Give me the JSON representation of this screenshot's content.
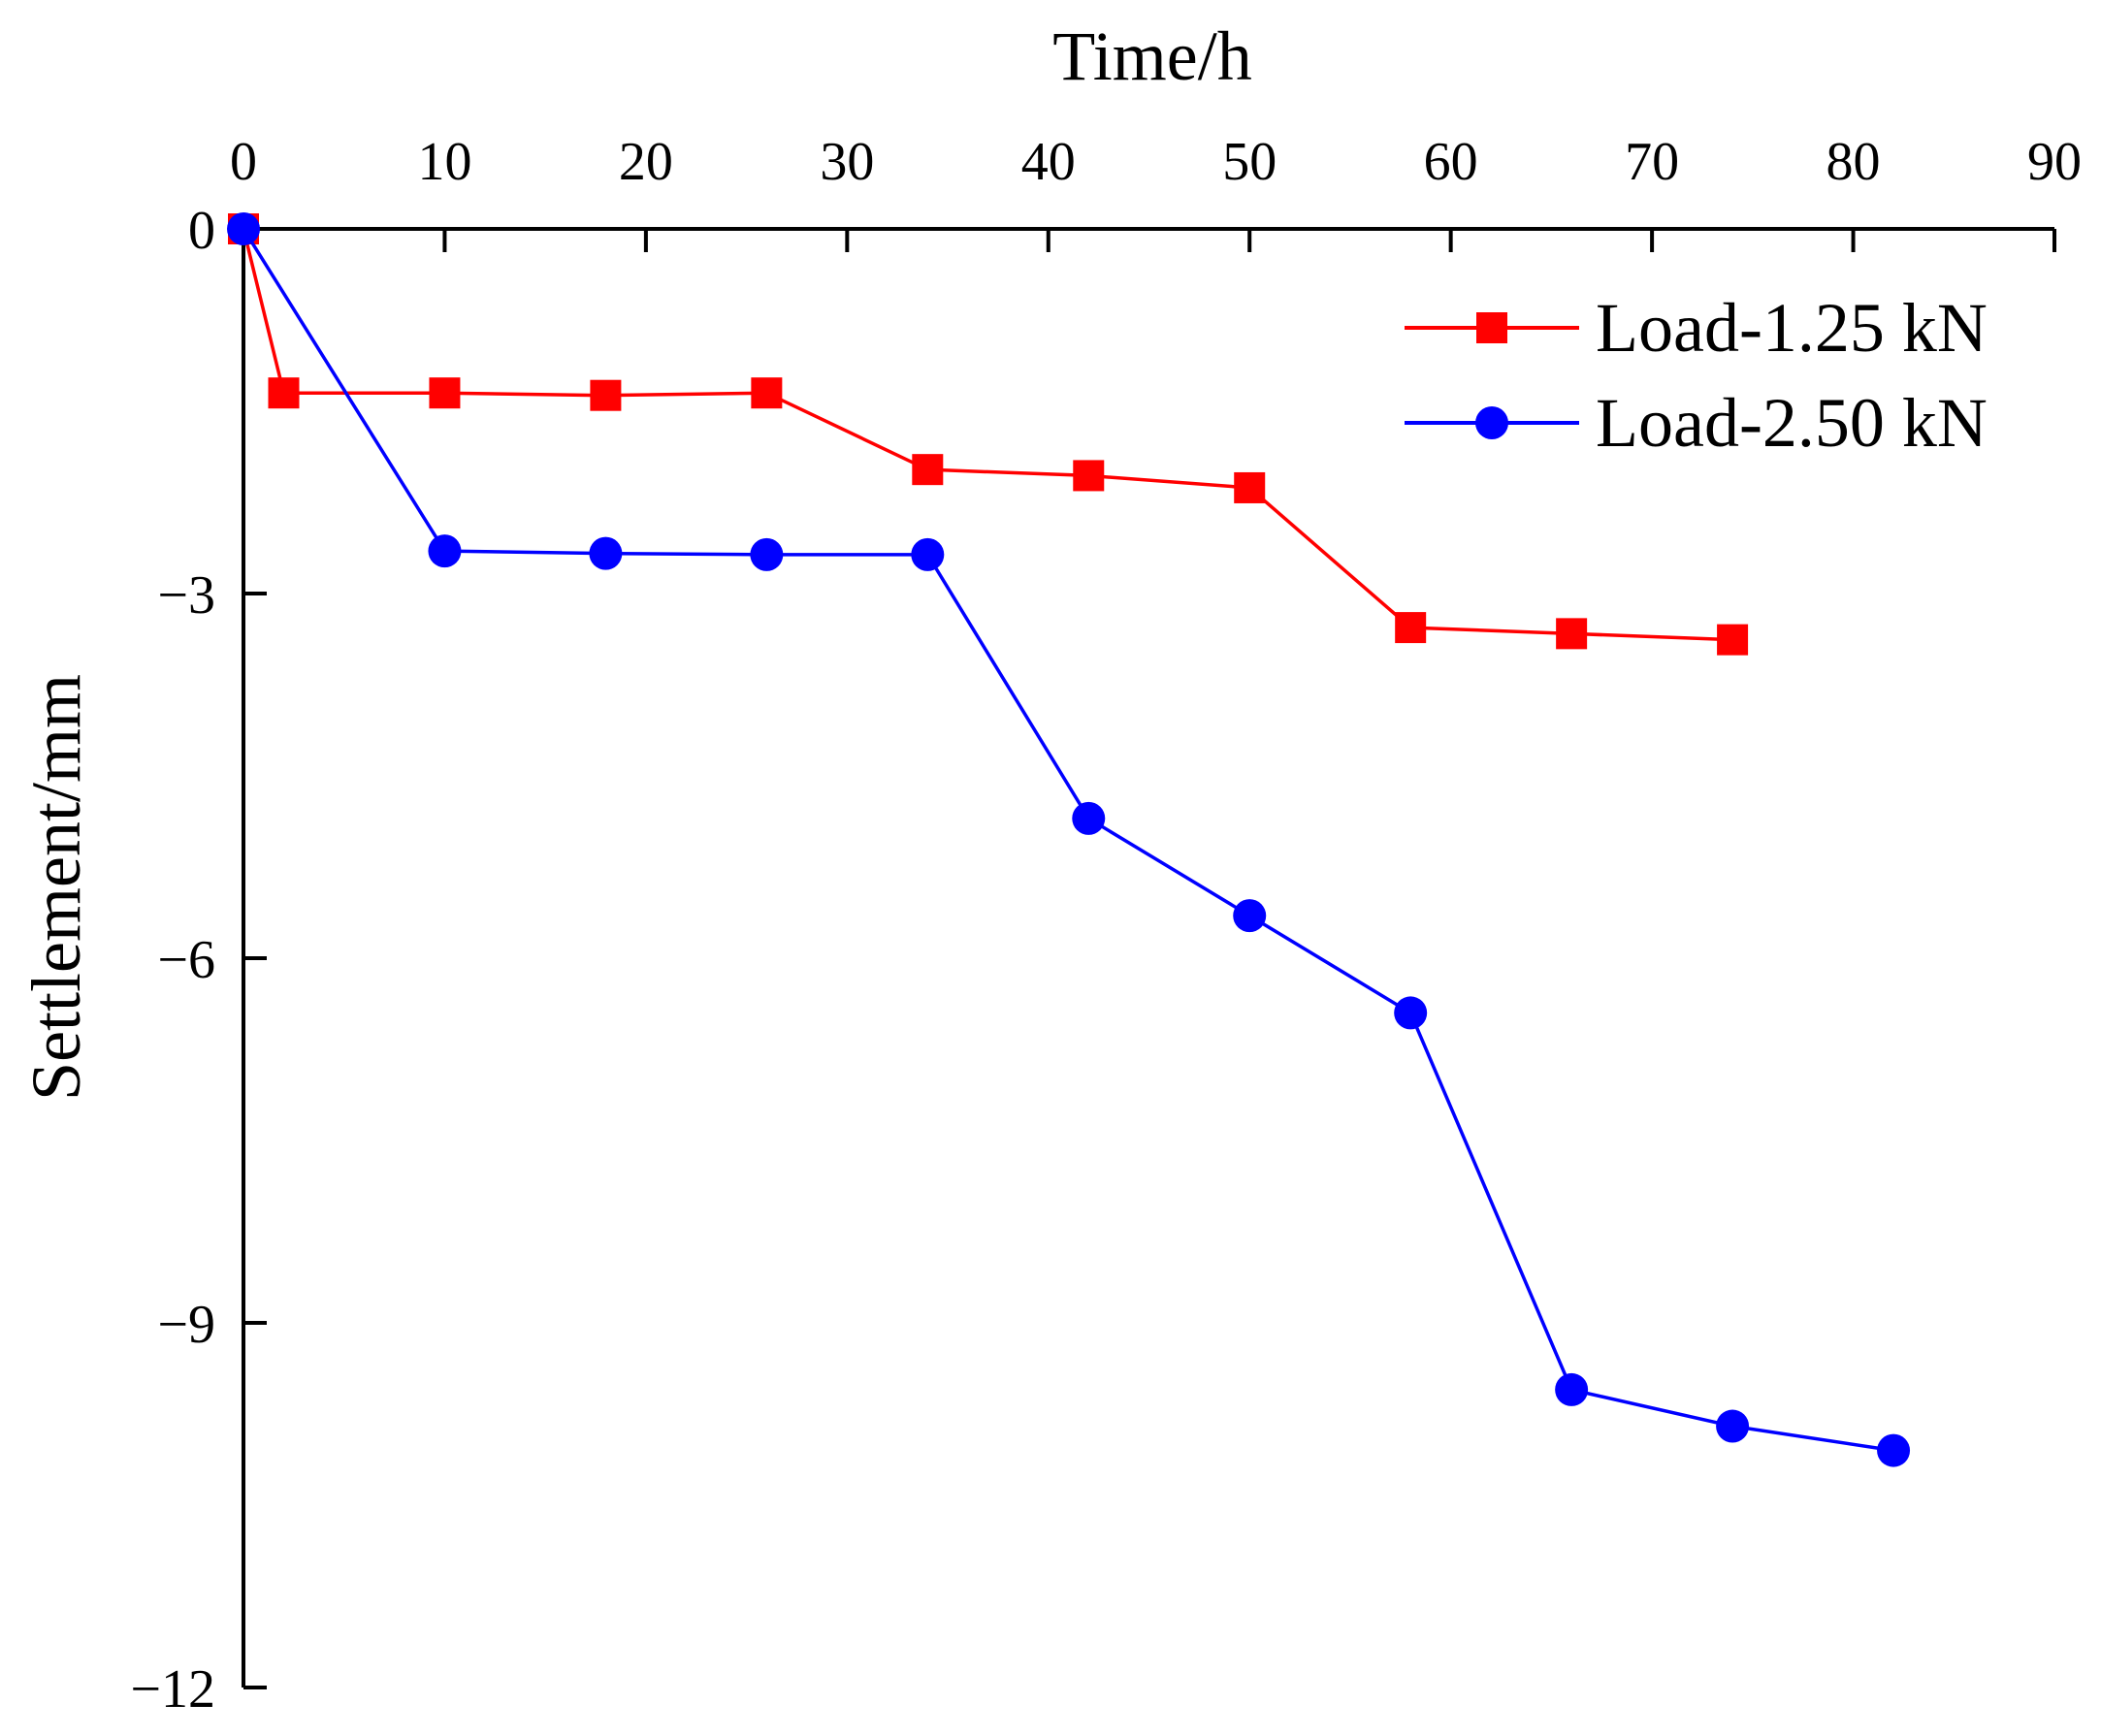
{
  "chart_data": {
    "type": "line",
    "title": "",
    "xlabel": "Time/h",
    "ylabel": "Settlement/mm",
    "xlim": [
      0,
      90
    ],
    "ylim": [
      -12,
      0
    ],
    "xticks": [
      0,
      10,
      20,
      30,
      40,
      50,
      60,
      70,
      80,
      90
    ],
    "yticks": [
      0,
      -3,
      -6,
      -9,
      -12
    ],
    "xtick_labels": [
      "0",
      "10",
      "20",
      "30",
      "40",
      "50",
      "60",
      "70",
      "80",
      "90"
    ],
    "ytick_labels": [
      "0",
      "−3",
      "−6",
      "−9",
      "−12"
    ],
    "x_axis_position": "top",
    "grid": false,
    "legend_position": "top-right",
    "series": [
      {
        "name": "Load-1.25 kN",
        "color": "#ff0000",
        "marker": "square",
        "x": [
          0,
          2,
          10,
          18,
          26,
          34,
          42,
          50,
          58,
          66,
          74
        ],
        "y": [
          0,
          -1.35,
          -1.35,
          -1.37,
          -1.35,
          -1.98,
          -2.03,
          -2.13,
          -3.28,
          -3.33,
          -3.38
        ]
      },
      {
        "name": "Load-2.50 kN",
        "color": "#0000ff",
        "marker": "circle",
        "x": [
          0,
          10,
          18,
          26,
          34,
          42,
          50,
          58,
          66,
          74,
          82
        ],
        "y": [
          0,
          -2.65,
          -2.67,
          -2.68,
          -2.68,
          -4.85,
          -5.65,
          -6.45,
          -9.55,
          -9.85,
          -10.05
        ]
      }
    ]
  }
}
